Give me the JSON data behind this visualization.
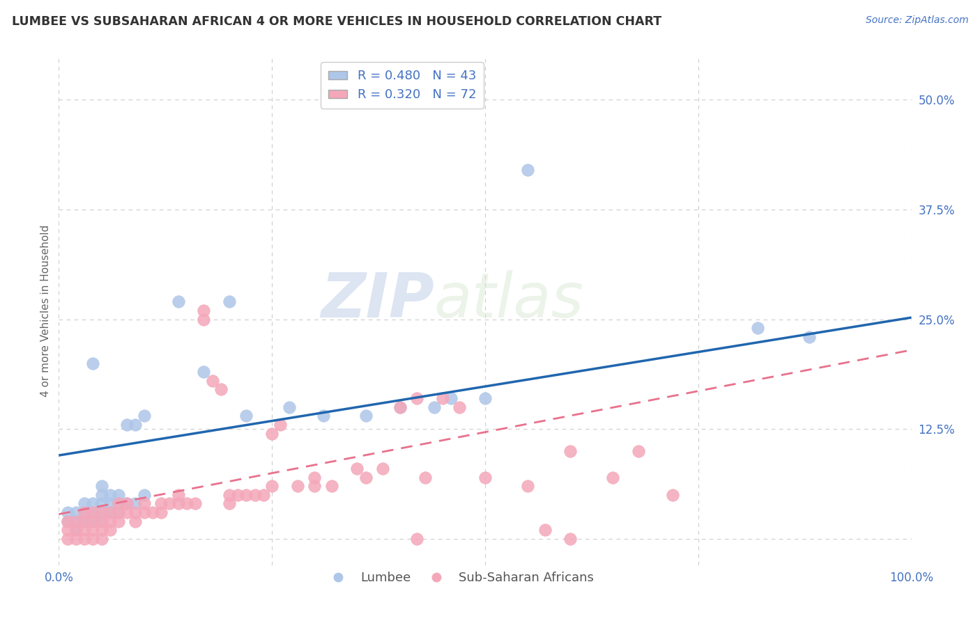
{
  "title": "LUMBEE VS SUBSAHARAN AFRICAN 4 OR MORE VEHICLES IN HOUSEHOLD CORRELATION CHART",
  "source_text": "Source: ZipAtlas.com",
  "ylabel": "4 or more Vehicles in Household",
  "xlim": [
    0,
    1.0
  ],
  "ylim": [
    -0.03,
    0.55
  ],
  "xticks": [
    0.0,
    0.25,
    0.5,
    0.75,
    1.0
  ],
  "xticklabels": [
    "0.0%",
    "",
    "",
    "",
    "100.0%"
  ],
  "yticks": [
    0.0,
    0.125,
    0.25,
    0.375,
    0.5
  ],
  "yticklabels": [
    "",
    "12.5%",
    "25.0%",
    "37.5%",
    "50.0%"
  ],
  "R_lumbee": 0.48,
  "N_lumbee": 43,
  "R_subsaharan": 0.32,
  "N_subsaharan": 72,
  "lumbee_color": "#aec6e8",
  "subsaharan_color": "#f4a7b9",
  "lumbee_line_color": "#2066ae",
  "subsaharan_line_color": "#e8718d",
  "background_color": "#ffffff",
  "grid_color": "#cccccc",
  "watermark_zip": "ZIP",
  "watermark_atlas": "atlas",
  "legend_blue_label": "Lumbee",
  "legend_pink_label": "Sub-Saharan Africans",
  "lumbee_line_x0": 0.0,
  "lumbee_line_y0": 0.095,
  "lumbee_line_x1": 1.0,
  "lumbee_line_y1": 0.252,
  "subsaharan_line_x0": 0.0,
  "subsaharan_line_y0": 0.028,
  "subsaharan_line_x1": 1.0,
  "subsaharan_line_y1": 0.215,
  "lumbee_points": [
    [
      0.01,
      0.02
    ],
    [
      0.01,
      0.03
    ],
    [
      0.02,
      0.01
    ],
    [
      0.02,
      0.02
    ],
    [
      0.02,
      0.03
    ],
    [
      0.03,
      0.02
    ],
    [
      0.03,
      0.03
    ],
    [
      0.03,
      0.04
    ],
    [
      0.04,
      0.02
    ],
    [
      0.04,
      0.03
    ],
    [
      0.04,
      0.04
    ],
    [
      0.05,
      0.02
    ],
    [
      0.05,
      0.03
    ],
    [
      0.05,
      0.04
    ],
    [
      0.05,
      0.05
    ],
    [
      0.06,
      0.03
    ],
    [
      0.06,
      0.04
    ],
    [
      0.07,
      0.03
    ],
    [
      0.07,
      0.04
    ],
    [
      0.08,
      0.04
    ],
    [
      0.08,
      0.13
    ],
    [
      0.09,
      0.13
    ],
    [
      0.1,
      0.05
    ],
    [
      0.1,
      0.14
    ],
    [
      0.14,
      0.27
    ],
    [
      0.17,
      0.19
    ],
    [
      0.2,
      0.27
    ],
    [
      0.22,
      0.14
    ],
    [
      0.27,
      0.15
    ],
    [
      0.31,
      0.14
    ],
    [
      0.36,
      0.14
    ],
    [
      0.4,
      0.15
    ],
    [
      0.44,
      0.15
    ],
    [
      0.46,
      0.16
    ],
    [
      0.5,
      0.16
    ],
    [
      0.04,
      0.2
    ],
    [
      0.55,
      0.42
    ],
    [
      0.82,
      0.24
    ],
    [
      0.88,
      0.23
    ],
    [
      0.05,
      0.06
    ],
    [
      0.06,
      0.05
    ],
    [
      0.07,
      0.05
    ],
    [
      0.09,
      0.04
    ]
  ],
  "subsaharan_points": [
    [
      0.01,
      0.0
    ],
    [
      0.01,
      0.01
    ],
    [
      0.01,
      0.02
    ],
    [
      0.02,
      0.0
    ],
    [
      0.02,
      0.01
    ],
    [
      0.02,
      0.02
    ],
    [
      0.03,
      0.0
    ],
    [
      0.03,
      0.01
    ],
    [
      0.03,
      0.02
    ],
    [
      0.03,
      0.03
    ],
    [
      0.04,
      0.0
    ],
    [
      0.04,
      0.01
    ],
    [
      0.04,
      0.02
    ],
    [
      0.04,
      0.03
    ],
    [
      0.05,
      0.0
    ],
    [
      0.05,
      0.01
    ],
    [
      0.05,
      0.02
    ],
    [
      0.05,
      0.03
    ],
    [
      0.06,
      0.01
    ],
    [
      0.06,
      0.02
    ],
    [
      0.06,
      0.03
    ],
    [
      0.07,
      0.02
    ],
    [
      0.07,
      0.03
    ],
    [
      0.07,
      0.04
    ],
    [
      0.08,
      0.03
    ],
    [
      0.08,
      0.04
    ],
    [
      0.09,
      0.02
    ],
    [
      0.09,
      0.03
    ],
    [
      0.1,
      0.03
    ],
    [
      0.1,
      0.04
    ],
    [
      0.11,
      0.03
    ],
    [
      0.12,
      0.03
    ],
    [
      0.12,
      0.04
    ],
    [
      0.13,
      0.04
    ],
    [
      0.14,
      0.04
    ],
    [
      0.14,
      0.05
    ],
    [
      0.15,
      0.04
    ],
    [
      0.16,
      0.04
    ],
    [
      0.17,
      0.25
    ],
    [
      0.17,
      0.26
    ],
    [
      0.18,
      0.18
    ],
    [
      0.19,
      0.17
    ],
    [
      0.2,
      0.04
    ],
    [
      0.2,
      0.05
    ],
    [
      0.21,
      0.05
    ],
    [
      0.22,
      0.05
    ],
    [
      0.23,
      0.05
    ],
    [
      0.24,
      0.05
    ],
    [
      0.25,
      0.06
    ],
    [
      0.25,
      0.12
    ],
    [
      0.26,
      0.13
    ],
    [
      0.28,
      0.06
    ],
    [
      0.3,
      0.07
    ],
    [
      0.3,
      0.06
    ],
    [
      0.32,
      0.06
    ],
    [
      0.35,
      0.08
    ],
    [
      0.36,
      0.07
    ],
    [
      0.38,
      0.08
    ],
    [
      0.4,
      0.15
    ],
    [
      0.42,
      0.16
    ],
    [
      0.42,
      0.0
    ],
    [
      0.43,
      0.07
    ],
    [
      0.45,
      0.16
    ],
    [
      0.47,
      0.15
    ],
    [
      0.5,
      0.07
    ],
    [
      0.55,
      0.06
    ],
    [
      0.57,
      0.01
    ],
    [
      0.6,
      0.0
    ],
    [
      0.6,
      0.1
    ],
    [
      0.65,
      0.07
    ],
    [
      0.68,
      0.1
    ],
    [
      0.72,
      0.05
    ]
  ]
}
